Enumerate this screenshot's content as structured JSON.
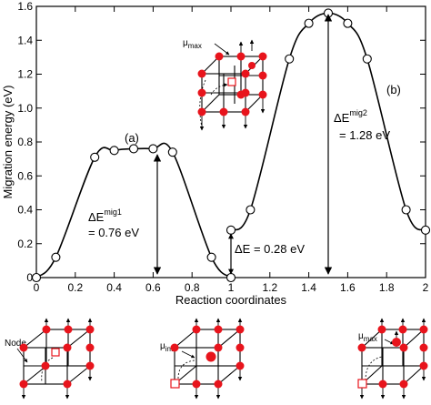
{
  "chart_data": {
    "type": "line",
    "xlabel": "Reaction coordinates",
    "ylabel": "Migration energy (eV)",
    "xlim": [
      0,
      2
    ],
    "ylim": [
      0,
      1.6
    ],
    "x_ticks": [
      "0",
      "0.2",
      "0.4",
      "0.6",
      "0.8",
      "1",
      "1.2",
      "1.4",
      "1.6",
      "1.8",
      "2"
    ],
    "y_ticks": [
      "0",
      "0.2",
      "0.4",
      "0.6",
      "0.8",
      "1.0",
      "1.2",
      "1.4",
      "1.6"
    ],
    "series": [
      {
        "x": [
          0.0,
          0.1,
          0.3,
          0.4,
          0.5,
          0.6,
          0.7,
          0.9,
          1.0
        ],
        "y": [
          0.0,
          0.12,
          0.71,
          0.75,
          0.76,
          0.76,
          0.74,
          0.12,
          0.0
        ]
      },
      {
        "x": [
          1.0,
          1.1,
          1.3,
          1.4,
          1.5,
          1.6,
          1.7,
          1.9,
          2.0
        ],
        "y": [
          0.28,
          0.4,
          1.29,
          1.5,
          1.56,
          1.5,
          1.29,
          0.4,
          0.28
        ]
      }
    ],
    "labels": {
      "a": "(a)",
      "b": "(b)",
      "dE1_main": "ΔE",
      "dE1_sup": "mig1",
      "dE1_value": "= 0.76 eV",
      "dE2_main": "ΔE",
      "dE2_sup": "mig2",
      "dE2_value": "= 1.28 eV",
      "dE_offset": "ΔE = 0.28 eV"
    },
    "insets": {
      "node_label": "Node",
      "mu_int_main": "μ",
      "mu_int_sub": "int",
      "mu_max_main": "μ",
      "mu_max_sub": "max"
    },
    "colors": {
      "line": "#000000",
      "marker_fill": "#ffffff",
      "atom": "#e8141c",
      "vacancy": "#e8141c"
    }
  }
}
